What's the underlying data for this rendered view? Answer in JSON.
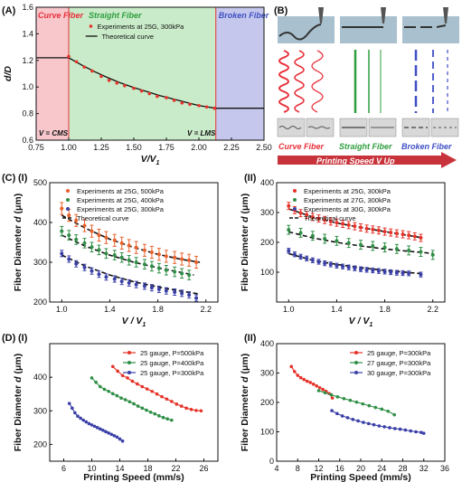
{
  "panel_labels": {
    "A": "(A)",
    "B": "(B)",
    "C": "(C)",
    "C1": "(I)",
    "C2": "(II)",
    "D": "(D)",
    "D1": "(I)",
    "D2": "(II)"
  },
  "colors": {
    "curve": "#e8303a",
    "straight": "#2e9e3e",
    "broken": "#3f4fc4",
    "orange": "#e8602a",
    "green": "#2f8f46",
    "blue": "#3a3fa8",
    "red": "#e5332a",
    "arrow": "#c8323a"
  },
  "panelB": {
    "label_curve": "Curve Fiber",
    "label_straight": "Straight Fiber",
    "label_broken": "Broken Fiber",
    "arrow_text": "Printing Speed V Up"
  },
  "chart_data": [
    {
      "id": "A",
      "type": "scatter",
      "xlabel": "V/V",
      "xlabel_sub": "1",
      "ylabel": "d/D",
      "xlim": [
        0.75,
        2.5
      ],
      "ylim": [
        0.6,
        1.6
      ],
      "xticks": [
        0.75,
        1.0,
        1.25,
        1.5,
        1.75,
        2.0,
        2.25,
        2.5
      ],
      "xtick_labels": [
        "0.75",
        "1.00",
        "1.25",
        "1.50",
        "1.75",
        "2.00",
        "2.25",
        "2.50"
      ],
      "yticks": [
        0.6,
        0.8,
        1.0,
        1.2,
        1.4,
        1.6
      ],
      "ytick_labels": [
        "0.6",
        "0.8",
        "1.0",
        "1.2",
        "1.4",
        "1.6"
      ],
      "regions": [
        {
          "name": "Curve Fiber",
          "from": 0.75,
          "to": 1.0,
          "color": "#f7c7cc"
        },
        {
          "name": "Straight Fiber",
          "from": 1.0,
          "to": 2.13,
          "color": "#c9ebc9"
        },
        {
          "name": "Broken Fiber",
          "from": 2.13,
          "to": 2.5,
          "color": "#c5c8ec"
        }
      ],
      "annotations": [
        "V = CMS",
        "V = LMS"
      ],
      "series": [
        {
          "name": "Experiments at 25G, 300kPa",
          "kind": "points",
          "x": [
            1.0,
            1.06,
            1.12,
            1.18,
            1.25,
            1.31,
            1.37,
            1.43,
            1.5,
            1.56,
            1.62,
            1.68,
            1.75,
            1.81,
            1.87,
            1.93,
            2.0,
            2.06,
            2.12
          ],
          "y": [
            1.23,
            1.19,
            1.15,
            1.12,
            1.08,
            1.05,
            1.03,
            1.01,
            0.99,
            0.97,
            0.95,
            0.93,
            0.92,
            0.9,
            0.88,
            0.87,
            0.86,
            0.85,
            0.84
          ]
        },
        {
          "name": "Theoretical curve",
          "kind": "line",
          "x": [
            0.75,
            1.0,
            1.1,
            1.2,
            1.3,
            1.4,
            1.5,
            1.6,
            1.7,
            1.8,
            1.9,
            2.0,
            2.13,
            2.5
          ],
          "y": [
            1.22,
            1.22,
            1.165,
            1.115,
            1.07,
            1.03,
            0.995,
            0.965,
            0.935,
            0.91,
            0.885,
            0.86,
            0.84,
            0.84
          ]
        }
      ]
    },
    {
      "id": "C1",
      "type": "scatter",
      "xlabel": "V / V",
      "xlabel_sub": "1",
      "ylabel": "Fiber Diameter",
      "ylabel_sym": "d",
      "ylabel_unit": "(μm)",
      "xlim": [
        0.9,
        2.3
      ],
      "ylim": [
        200,
        500
      ],
      "xticks": [
        1.0,
        1.4,
        1.8,
        2.2
      ],
      "xtick_labels": [
        "1.0",
        "1.4",
        "1.8",
        "2.2"
      ],
      "yticks": [
        200,
        300,
        400,
        500
      ],
      "ytick_labels": [
        "200",
        "300",
        "400",
        "500"
      ],
      "series": [
        {
          "name": "Experiments at 25G, 500kPa",
          "color": "#e8602a",
          "x": [
            1.0,
            1.06,
            1.12,
            1.19,
            1.25,
            1.31,
            1.37,
            1.44,
            1.5,
            1.56,
            1.62,
            1.69,
            1.75,
            1.81,
            1.87,
            1.94,
            2.0,
            2.06,
            2.12
          ],
          "y": [
            435,
            418,
            405,
            392,
            378,
            368,
            362,
            355,
            348,
            342,
            337,
            330,
            325,
            320,
            315,
            312,
            308,
            305,
            300
          ],
          "err": 15
        },
        {
          "name": "Experiments at 25G, 400kPa",
          "color": "#2f8f46",
          "x": [
            1.0,
            1.06,
            1.12,
            1.19,
            1.25,
            1.31,
            1.37,
            1.44,
            1.5,
            1.56,
            1.62,
            1.69,
            1.75,
            1.81,
            1.87,
            1.94,
            2.0,
            2.06
          ],
          "y": [
            378,
            368,
            357,
            348,
            338,
            331,
            322,
            318,
            312,
            305,
            300,
            295,
            290,
            285,
            280,
            276,
            272,
            268
          ],
          "err": 12
        },
        {
          "name": "Experiments at 25G, 300kPa",
          "color": "#3a3fa8",
          "x": [
            1.0,
            1.06,
            1.12,
            1.19,
            1.25,
            1.31,
            1.37,
            1.44,
            1.5,
            1.56,
            1.62,
            1.69,
            1.75,
            1.81,
            1.87,
            1.94,
            2.0,
            2.06,
            2.12
          ],
          "y": [
            322,
            308,
            296,
            287,
            278,
            270,
            263,
            258,
            252,
            248,
            244,
            240,
            236,
            232,
            228,
            225,
            222,
            218,
            210
          ],
          "err": 8
        },
        {
          "name": "Theoretical curve",
          "kind": "dashed",
          "lines": [
            {
              "x": [
                1.0,
                1.2,
                1.4,
                1.6,
                1.8,
                2.0,
                2.15
              ],
              "y": [
                418,
                385,
                358,
                337,
                320,
                307,
                300
              ]
            },
            {
              "x": [
                1.0,
                1.2,
                1.4,
                1.6,
                1.8,
                2.0,
                2.1
              ],
              "y": [
                368,
                340,
                318,
                300,
                286,
                274,
                268
              ]
            },
            {
              "x": [
                1.0,
                1.2,
                1.4,
                1.6,
                1.8,
                2.0,
                2.15
              ],
              "y": [
                318,
                290,
                268,
                251,
                238,
                227,
                220
              ]
            }
          ]
        }
      ]
    },
    {
      "id": "C2",
      "type": "scatter",
      "xlabel": "V / V",
      "xlabel_sub": "1",
      "ylabel": "Fiber Diameter",
      "ylabel_sym": "d",
      "ylabel_unit": "(μm)",
      "xlim": [
        0.9,
        2.3
      ],
      "ylim": [
        0,
        400
      ],
      "xticks": [
        1.0,
        1.4,
        1.8,
        2.2
      ],
      "xtick_labels": [
        "1.0",
        "1.4",
        "1.8",
        "2.2"
      ],
      "yticks": [
        100,
        200,
        300,
        400
      ],
      "ytick_labels": [
        "100",
        "200",
        "300",
        "400"
      ],
      "series": [
        {
          "name": "Experiments at 25G, 300kPa",
          "color": "#e5332a",
          "x": [
            1.0,
            1.05,
            1.1,
            1.15,
            1.2,
            1.25,
            1.3,
            1.35,
            1.4,
            1.45,
            1.5,
            1.55,
            1.6,
            1.65,
            1.7,
            1.75,
            1.8,
            1.85,
            1.9,
            1.95,
            2.0,
            2.05,
            2.1
          ],
          "y": [
            322,
            308,
            298,
            292,
            285,
            280,
            275,
            270,
            266,
            262,
            258,
            254,
            250,
            246,
            243,
            240,
            236,
            233,
            230,
            227,
            224,
            220,
            215
          ],
          "err": 12
        },
        {
          "name": "Experiments at 27G, 300kPa",
          "color": "#2f8f46",
          "x": [
            1.0,
            1.1,
            1.2,
            1.3,
            1.4,
            1.5,
            1.6,
            1.7,
            1.8,
            1.9,
            2.0,
            2.1,
            2.2
          ],
          "y": [
            242,
            232,
            222,
            212,
            205,
            198,
            192,
            188,
            183,
            178,
            173,
            168,
            158
          ],
          "err": 15
        },
        {
          "name": "Experiments at 30G, 300kPa",
          "color": "#3a3fa8",
          "x": [
            1.0,
            1.05,
            1.1,
            1.15,
            1.2,
            1.25,
            1.3,
            1.35,
            1.4,
            1.45,
            1.5,
            1.55,
            1.6,
            1.65,
            1.7,
            1.75,
            1.8,
            1.85,
            1.9,
            1.95,
            2.0,
            2.1
          ],
          "y": [
            172,
            160,
            152,
            146,
            140,
            135,
            130,
            126,
            122,
            119,
            116,
            113,
            110,
            108,
            106,
            104,
            102,
            100,
            98,
            97,
            96,
            92
          ],
          "err": 8
        },
        {
          "name": "Theoretical curve",
          "kind": "dashed",
          "lines": [
            {
              "x": [
                1.0,
                1.2,
                1.4,
                1.6,
                1.8,
                2.0,
                2.1
              ],
              "y": [
                312,
                285,
                265,
                250,
                236,
                223,
                216
              ]
            },
            {
              "x": [
                1.0,
                1.2,
                1.4,
                1.6,
                1.8,
                2.0,
                2.2
              ],
              "y": [
                235,
                215,
                200,
                188,
                178,
                170,
                163
              ]
            },
            {
              "x": [
                1.0,
                1.2,
                1.4,
                1.6,
                1.8,
                2.0,
                2.1
              ],
              "y": [
                162,
                140,
                126,
                115,
                106,
                99,
                95
              ]
            }
          ]
        }
      ]
    },
    {
      "id": "D1",
      "type": "line",
      "xlabel": "Printing Speed (mm/s)",
      "ylabel": "Fiber Diameter",
      "ylabel_sym": "d",
      "ylabel_unit": "(μm)",
      "xlim": [
        4,
        28
      ],
      "ylim": [
        150,
        500
      ],
      "xticks": [
        6,
        10,
        14,
        18,
        22,
        26
      ],
      "xtick_labels": [
        "6",
        "10",
        "14",
        "18",
        "22",
        "26"
      ],
      "yticks": [
        200,
        300,
        400
      ],
      "ytick_labels": [
        "200",
        "300",
        "400"
      ],
      "series": [
        {
          "name": "25 gauge, P=500kPa",
          "color": "#e5332a",
          "x": [
            13.0,
            13.7,
            14.4,
            15.1,
            15.8,
            16.5,
            17.2,
            17.9,
            18.6,
            19.3,
            20.0,
            20.7,
            21.4,
            22.1,
            22.8,
            23.5,
            24.2,
            24.9,
            25.6
          ],
          "y": [
            432,
            418,
            405,
            398,
            388,
            380,
            372,
            365,
            358,
            350,
            342,
            335,
            328,
            320,
            314,
            308,
            304,
            301,
            300
          ]
        },
        {
          "name": "25 gauge, P=400kPa",
          "color": "#2f8f46",
          "x": [
            10.0,
            10.6,
            11.2,
            11.8,
            12.4,
            13.0,
            13.6,
            14.2,
            14.8,
            15.4,
            16.0,
            16.6,
            17.2,
            17.8,
            18.4,
            19.0,
            19.6,
            20.2,
            20.8,
            21.4
          ],
          "y": [
            398,
            385,
            372,
            364,
            358,
            351,
            345,
            338,
            333,
            327,
            321,
            314,
            308,
            302,
            296,
            291,
            285,
            280,
            276,
            272
          ]
        },
        {
          "name": "25 gauge, P=300kPa",
          "color": "#3a3fa8",
          "x": [
            6.8,
            7.2,
            7.6,
            8.0,
            8.4,
            8.8,
            9.2,
            9.6,
            10.0,
            10.4,
            10.8,
            11.2,
            11.6,
            12.0,
            12.4,
            12.8,
            13.2,
            13.6,
            14.0,
            14.4
          ],
          "y": [
            322,
            308,
            294,
            284,
            278,
            272,
            267,
            262,
            258,
            254,
            250,
            246,
            242,
            238,
            234,
            230,
            226,
            222,
            216,
            210
          ]
        }
      ]
    },
    {
      "id": "D2",
      "type": "line",
      "xlabel": "Printing Speed (mm/s)",
      "ylabel": "Fiber Diameter",
      "ylabel_sym": "d",
      "ylabel_unit": "(μm)",
      "xlim": [
        4,
        36
      ],
      "ylim": [
        0,
        400
      ],
      "xticks": [
        4,
        8,
        12,
        16,
        20,
        24,
        28,
        32,
        36
      ],
      "xtick_labels": [
        "4",
        "8",
        "12",
        "16",
        "20",
        "24",
        "28",
        "32",
        "36"
      ],
      "yticks": [
        0,
        100,
        200,
        300,
        400
      ],
      "ytick_labels": [
        "0",
        "100",
        "200",
        "300",
        "400"
      ],
      "series": [
        {
          "name": "25 gauge, P=300kPa",
          "color": "#e5332a",
          "x": [
            6.8,
            7.4,
            8.0,
            8.6,
            9.2,
            9.8,
            10.4,
            11.0,
            11.6,
            12.2,
            12.8,
            13.4,
            14.0,
            14.6
          ],
          "y": [
            322,
            305,
            292,
            284,
            278,
            272,
            268,
            262,
            256,
            250,
            244,
            238,
            230,
            215
          ]
        },
        {
          "name": "27 gauge, P=300kPa",
          "color": "#2f8f46",
          "x": [
            12.0,
            13.2,
            14.4,
            15.6,
            16.8,
            18.0,
            19.2,
            20.4,
            21.6,
            22.8,
            24.0,
            25.2,
            26.4
          ],
          "y": [
            240,
            233,
            226,
            219,
            213,
            207,
            201,
            195,
            189,
            183,
            177,
            170,
            158
          ]
        },
        {
          "name": "30 gauge, P=300kPa",
          "color": "#3a3fa8",
          "x": [
            14.5,
            15.5,
            16.5,
            17.5,
            18.5,
            19.5,
            20.5,
            21.5,
            22.5,
            23.5,
            24.5,
            25.5,
            26.5,
            27.5,
            28.5,
            29.5,
            30.5,
            31.5,
            32.0
          ],
          "y": [
            172,
            162,
            154,
            148,
            142,
            137,
            132,
            128,
            124,
            120,
            117,
            114,
            111,
            109,
            106,
            103,
            100,
            98,
            95
          ]
        }
      ]
    }
  ]
}
